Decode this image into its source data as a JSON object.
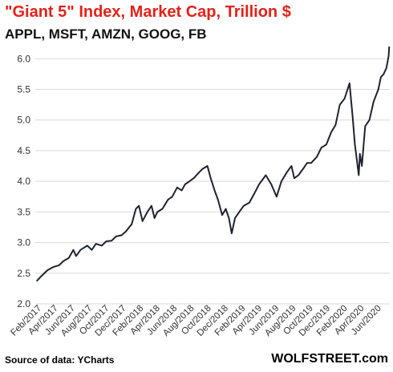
{
  "chart_data": {
    "type": "line",
    "title": "\"Giant 5\" Index, Market Cap, Trillion $",
    "subtitle": "APPL, MSFT, AMZN, GOOG, FB",
    "xlabel": "",
    "ylabel": "",
    "ylim": [
      2.0,
      6.2
    ],
    "yticks": [
      "6.0",
      "5.5",
      "5.0",
      "4.5",
      "4.0",
      "3.5",
      "3.0",
      "2.5",
      "2.0"
    ],
    "xticks": [
      "Feb/2017",
      "Apr/2017",
      "Jun/2017",
      "Aug/2017",
      "Oct/2017",
      "Dec/2017",
      "Feb/2018",
      "Apr/2018",
      "Jun/2018",
      "Aug/2018",
      "Oct/2018",
      "Dec/2018",
      "Feb/2019",
      "Apr/2019",
      "Jun/2019",
      "Aug/2019",
      "Oct/2019",
      "Dec/2019",
      "Feb/2020",
      "Apr/2020",
      "Jun/2020"
    ],
    "grid": "horizontal",
    "line_color": "#1f2330",
    "series": [
      {
        "x": [
          "2017-01-25",
          "2017-02-10",
          "2017-03-05",
          "2017-03-25",
          "2017-04-15",
          "2017-05-01",
          "2017-05-20",
          "2017-06-05",
          "2017-06-15",
          "2017-07-01",
          "2017-07-25",
          "2017-08-10",
          "2017-08-25",
          "2017-09-15",
          "2017-10-01",
          "2017-10-20",
          "2017-11-05",
          "2017-11-25",
          "2017-12-10",
          "2017-12-31",
          "2018-01-15",
          "2018-01-26",
          "2018-02-08",
          "2018-02-25",
          "2018-03-12",
          "2018-03-23",
          "2018-04-02",
          "2018-04-20",
          "2018-05-10",
          "2018-05-25",
          "2018-06-12",
          "2018-06-28",
          "2018-07-10",
          "2018-07-26",
          "2018-08-10",
          "2018-08-30",
          "2018-09-10",
          "2018-09-28",
          "2018-10-10",
          "2018-10-24",
          "2018-11-05",
          "2018-11-20",
          "2018-12-03",
          "2018-12-14",
          "2018-12-24",
          "2019-01-05",
          "2019-01-20",
          "2019-02-05",
          "2019-02-25",
          "2019-03-15",
          "2019-04-01",
          "2019-04-25",
          "2019-05-15",
          "2019-06-03",
          "2019-06-20",
          "2019-07-10",
          "2019-07-26",
          "2019-08-05",
          "2019-08-20",
          "2019-09-05",
          "2019-09-20",
          "2019-10-05",
          "2019-10-25",
          "2019-11-10",
          "2019-11-28",
          "2019-12-15",
          "2019-12-31",
          "2020-01-15",
          "2020-02-01",
          "2020-02-19",
          "2020-03-01",
          "2020-03-09",
          "2020-03-16",
          "2020-03-23",
          "2020-03-27",
          "2020-04-03",
          "2020-04-15",
          "2020-04-30",
          "2020-05-15",
          "2020-06-01",
          "2020-06-10",
          "2020-06-20",
          "2020-06-30",
          "2020-07-08",
          "2020-07-10"
        ],
        "y": [
          2.37,
          2.45,
          2.55,
          2.6,
          2.63,
          2.7,
          2.75,
          2.88,
          2.78,
          2.88,
          2.95,
          2.88,
          2.98,
          2.95,
          3.02,
          3.03,
          3.1,
          3.12,
          3.18,
          3.3,
          3.55,
          3.6,
          3.35,
          3.5,
          3.6,
          3.4,
          3.5,
          3.55,
          3.7,
          3.75,
          3.9,
          3.85,
          3.95,
          4.0,
          4.05,
          4.15,
          4.2,
          4.25,
          4.05,
          3.85,
          3.7,
          3.45,
          3.55,
          3.4,
          3.15,
          3.4,
          3.5,
          3.6,
          3.65,
          3.8,
          3.95,
          4.1,
          3.95,
          3.75,
          4.0,
          4.15,
          4.25,
          4.05,
          4.1,
          4.2,
          4.3,
          4.3,
          4.4,
          4.55,
          4.6,
          4.8,
          4.92,
          5.25,
          5.35,
          5.6,
          5.05,
          4.6,
          4.35,
          4.1,
          4.45,
          4.25,
          4.9,
          5.0,
          5.3,
          5.5,
          5.7,
          5.75,
          5.85,
          6.05,
          6.2
        ]
      }
    ]
  },
  "source_label": "Source of data: YCharts",
  "brand_label": "WOLFSTREET.com"
}
